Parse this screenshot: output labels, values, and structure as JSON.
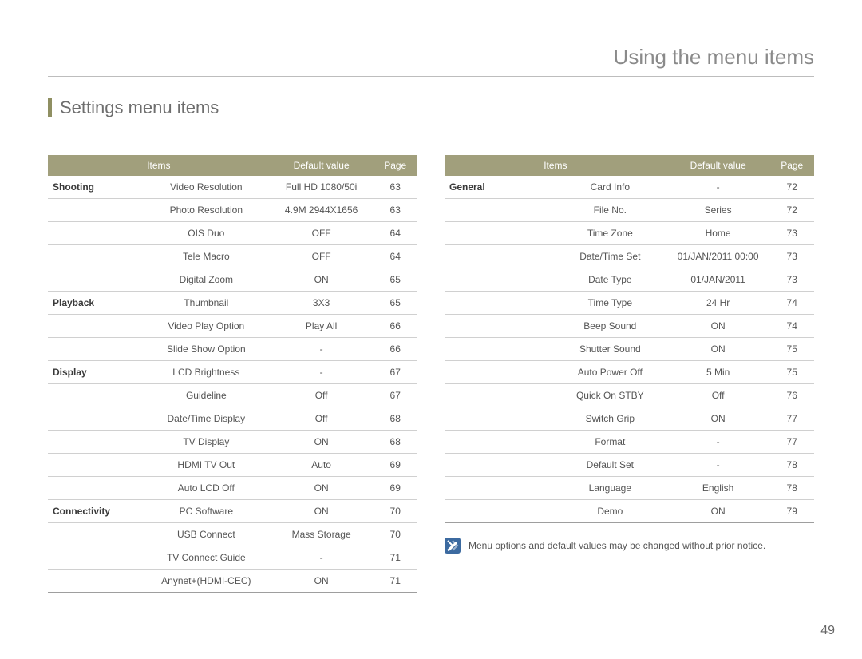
{
  "chapter_title": "Using the menu items",
  "section_title": "Settings menu items",
  "page_number": "49",
  "headers": {
    "items": "Items",
    "default_value": "Default value",
    "page": "Page"
  },
  "colors": {
    "header_bg": "#a19f7c",
    "header_text": "#ffffff",
    "section_bar": "#8f8f62",
    "text": "#555555",
    "border": "#d0d0d0",
    "note_icon_bg": "#3c6aa0",
    "note_icon_fg": "#ffffff"
  },
  "left_table": [
    {
      "cat": "Shooting",
      "item": "Video Resolution",
      "def": "Full HD  1080/50i",
      "page": "63"
    },
    {
      "cat": "",
      "item": "Photo Resolution",
      "def": "4.9M  2944X1656",
      "page": "63"
    },
    {
      "cat": "",
      "item": "OIS Duo",
      "def": "OFF",
      "page": "64"
    },
    {
      "cat": "",
      "item": "Tele Macro",
      "def": "OFF",
      "page": "64"
    },
    {
      "cat": "",
      "item": "Digital Zoom",
      "def": "ON",
      "page": "65"
    },
    {
      "cat": "Playback",
      "item": "Thumbnail",
      "def": "3X3",
      "page": "65"
    },
    {
      "cat": "",
      "item": "Video Play Option",
      "def": "Play All",
      "page": "66"
    },
    {
      "cat": "",
      "item": "Slide Show Option",
      "def": "-",
      "page": "66"
    },
    {
      "cat": "Display",
      "item": "LCD Brightness",
      "def": "-",
      "page": "67"
    },
    {
      "cat": "",
      "item": "Guideline",
      "def": "Off",
      "page": "67"
    },
    {
      "cat": "",
      "item": "Date/Time Display",
      "def": "Off",
      "page": "68"
    },
    {
      "cat": "",
      "item": "TV Display",
      "def": "ON",
      "page": "68"
    },
    {
      "cat": "",
      "item": "HDMI TV Out",
      "def": "Auto",
      "page": "69"
    },
    {
      "cat": "",
      "item": "Auto LCD Off",
      "def": "ON",
      "page": "69"
    },
    {
      "cat": "Connectivity",
      "item": "PC Software",
      "def": "ON",
      "page": "70"
    },
    {
      "cat": "",
      "item": "USB Connect",
      "def": "Mass Storage",
      "page": "70"
    },
    {
      "cat": "",
      "item": "TV Connect Guide",
      "def": "-",
      "page": "71"
    },
    {
      "cat": "",
      "item": "Anynet+(HDMI-CEC)",
      "def": "ON",
      "page": "71"
    }
  ],
  "right_table": [
    {
      "cat": "General",
      "item": "Card Info",
      "def": "-",
      "page": "72"
    },
    {
      "cat": "",
      "item": "File No.",
      "def": "Series",
      "page": "72"
    },
    {
      "cat": "",
      "item": "Time Zone",
      "def": "Home",
      "page": "73"
    },
    {
      "cat": "",
      "item": "Date/Time Set",
      "def": "01/JAN/2011 00:00",
      "page": "73"
    },
    {
      "cat": "",
      "item": "Date Type",
      "def": "01/JAN/2011",
      "page": "73"
    },
    {
      "cat": "",
      "item": "Time Type",
      "def": "24 Hr",
      "page": "74"
    },
    {
      "cat": "",
      "item": "Beep Sound",
      "def": "ON",
      "page": "74"
    },
    {
      "cat": "",
      "item": "Shutter Sound",
      "def": "ON",
      "page": "75"
    },
    {
      "cat": "",
      "item": "Auto Power Off",
      "def": "5 Min",
      "page": "75"
    },
    {
      "cat": "",
      "item": "Quick On STBY",
      "def": "Off",
      "page": "76"
    },
    {
      "cat": "",
      "item": "Switch Grip",
      "def": "ON",
      "page": "77"
    },
    {
      "cat": "",
      "item": "Format",
      "def": "-",
      "page": "77"
    },
    {
      "cat": "",
      "item": "Default Set",
      "def": "-",
      "page": "78"
    },
    {
      "cat": "",
      "item": "Language",
      "def": "English",
      "page": "78"
    },
    {
      "cat": "",
      "item": "Demo",
      "def": "ON",
      "page": "79"
    }
  ],
  "note_text": "Menu options and default values may be changed without prior notice."
}
